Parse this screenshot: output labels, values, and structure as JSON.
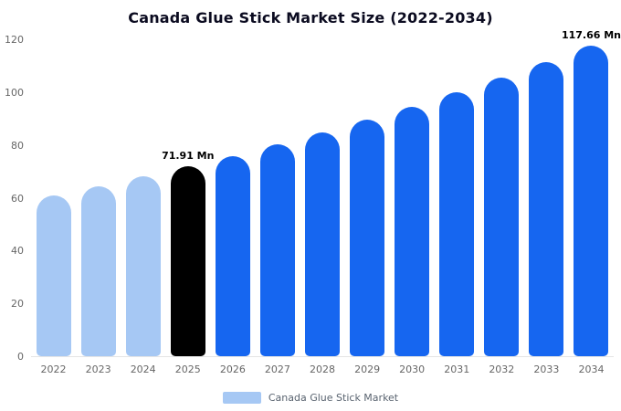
{
  "chart_data": {
    "type": "bar",
    "title": "Canada Glue Stick Market Size (2022-2034)",
    "xlabel": "",
    "ylabel": "",
    "ylim": [
      0,
      120
    ],
    "yticks": [
      0,
      20,
      40,
      60,
      80,
      100,
      120
    ],
    "grid": false,
    "unit": "Mn",
    "categories": [
      "2022",
      "2023",
      "2024",
      "2025",
      "2026",
      "2027",
      "2028",
      "2029",
      "2030",
      "2031",
      "2032",
      "2033",
      "2034"
    ],
    "values": [
      60.9,
      64.3,
      68.0,
      71.91,
      75.9,
      80.2,
      84.7,
      89.5,
      94.5,
      99.8,
      105.4,
      111.4,
      117.66
    ],
    "bar_colors": [
      "#a6c8f4",
      "#a6c8f4",
      "#a6c8f4",
      "#000000",
      "#1666f0",
      "#1666f0",
      "#1666f0",
      "#1666f0",
      "#1666f0",
      "#1666f0",
      "#1666f0",
      "#1666f0",
      "#1666f0"
    ],
    "annotations": [
      {
        "index": 3,
        "label": "71.91 Mn"
      },
      {
        "index": 12,
        "label": "117.66 Mn"
      }
    ],
    "legend": {
      "position": "bottom",
      "entries": [
        {
          "label": "Canada Glue Stick Market",
          "color": "#a6c8f4"
        }
      ]
    },
    "colors": {
      "light_blue": "#a6c8f4",
      "blue": "#1666f0",
      "highlight": "#000000",
      "axis_text": "#666666",
      "title_text": "#0b0b20"
    }
  }
}
